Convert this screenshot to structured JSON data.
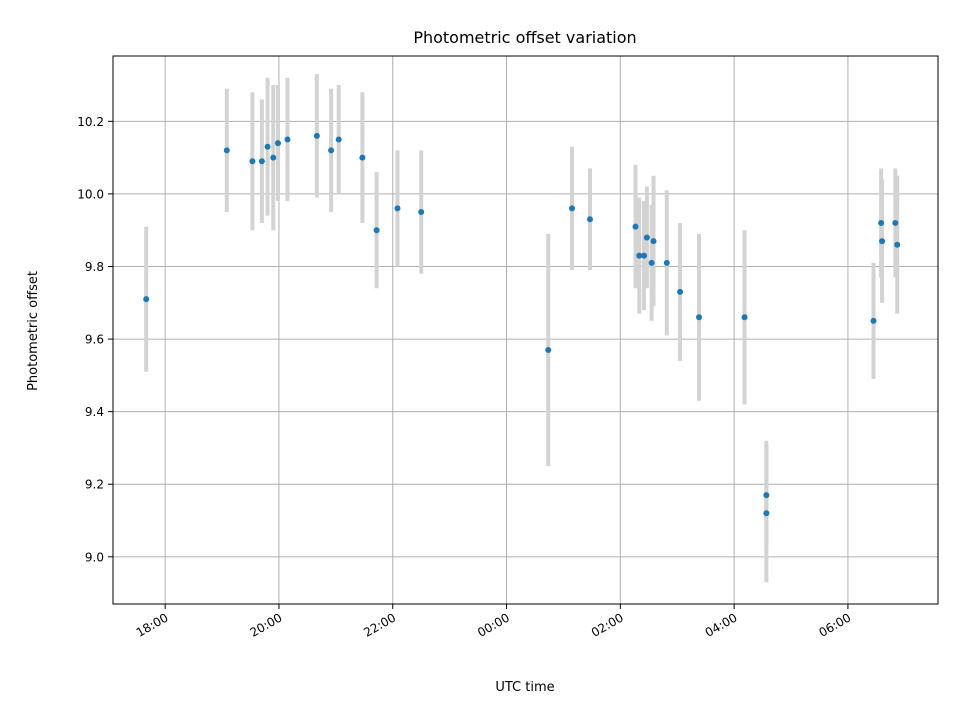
{
  "chart_data": {
    "type": "scatter",
    "title": "Photometric offset variation",
    "xlabel": "UTC time",
    "ylabel": "Photometric offset",
    "x_is_time": true,
    "x_range": [
      "17:05",
      "07:35"
    ],
    "xlim": [
      -415,
      455
    ],
    "ylim": [
      8.87,
      10.38
    ],
    "grid": true,
    "x_ticks": [
      {
        "minutes": -360,
        "label": "18:00"
      },
      {
        "minutes": -240,
        "label": "20:00"
      },
      {
        "minutes": -120,
        "label": "22:00"
      },
      {
        "minutes": 0,
        "label": "00:00"
      },
      {
        "minutes": 120,
        "label": "02:00"
      },
      {
        "minutes": 240,
        "label": "04:00"
      },
      {
        "minutes": 360,
        "label": "06:00"
      }
    ],
    "y_ticks": [
      {
        "value": 9.0,
        "label": "9.0"
      },
      {
        "value": 9.2,
        "label": "9.2"
      },
      {
        "value": 9.4,
        "label": "9.4"
      },
      {
        "value": 9.6,
        "label": "9.6"
      },
      {
        "value": 9.8,
        "label": "9.8"
      },
      {
        "value": 10.0,
        "label": "10.0"
      },
      {
        "value": 10.2,
        "label": "10.2"
      }
    ],
    "marker_color": "#1f77b4",
    "errorbar_color": "#d3d3d3",
    "points": [
      {
        "time": "17:40",
        "minutes": -380,
        "y": 9.71,
        "err": 0.2
      },
      {
        "time": "19:05",
        "minutes": -295,
        "y": 10.12,
        "err": 0.17
      },
      {
        "time": "19:32",
        "minutes": -268,
        "y": 10.09,
        "err": 0.19
      },
      {
        "time": "19:42",
        "minutes": -258,
        "y": 10.09,
        "err": 0.17
      },
      {
        "time": "19:48",
        "minutes": -252,
        "y": 10.13,
        "err": 0.19
      },
      {
        "time": "19:54",
        "minutes": -246,
        "y": 10.1,
        "err": 0.2
      },
      {
        "time": "19:59",
        "minutes": -241,
        "y": 10.14,
        "err": 0.16
      },
      {
        "time": "20:09",
        "minutes": -231,
        "y": 10.15,
        "err": 0.17
      },
      {
        "time": "20:40",
        "minutes": -200,
        "y": 10.16,
        "err": 0.17
      },
      {
        "time": "20:55",
        "minutes": -185,
        "y": 10.12,
        "err": 0.17
      },
      {
        "time": "21:03",
        "minutes": -177,
        "y": 10.15,
        "err": 0.15
      },
      {
        "time": "21:28",
        "minutes": -152,
        "y": 10.1,
        "err": 0.18
      },
      {
        "time": "21:43",
        "minutes": -137,
        "y": 9.9,
        "err": 0.16
      },
      {
        "time": "22:05",
        "minutes": -115,
        "y": 9.96,
        "err": 0.16
      },
      {
        "time": "22:30",
        "minutes": -90,
        "y": 9.95,
        "err": 0.17
      },
      {
        "time": "00:44",
        "minutes": 44,
        "y": 9.57,
        "err": 0.32
      },
      {
        "time": "01:09",
        "minutes": 69,
        "y": 9.96,
        "err": 0.17
      },
      {
        "time": "01:28",
        "minutes": 88,
        "y": 9.93,
        "err": 0.14
      },
      {
        "time": "02:16",
        "minutes": 136,
        "y": 9.91,
        "err": 0.17
      },
      {
        "time": "02:20",
        "minutes": 140,
        "y": 9.83,
        "err": 0.16
      },
      {
        "time": "02:25",
        "minutes": 145,
        "y": 9.83,
        "err": 0.15
      },
      {
        "time": "02:28",
        "minutes": 148,
        "y": 9.88,
        "err": 0.14
      },
      {
        "time": "02:33",
        "minutes": 153,
        "y": 9.81,
        "err": 0.16
      },
      {
        "time": "02:35",
        "minutes": 155,
        "y": 9.87,
        "err": 0.18
      },
      {
        "time": "02:49",
        "minutes": 169,
        "y": 9.81,
        "err": 0.2
      },
      {
        "time": "03:03",
        "minutes": 183,
        "y": 9.73,
        "err": 0.19
      },
      {
        "time": "03:23",
        "minutes": 203,
        "y": 9.66,
        "err": 0.23
      },
      {
        "time": "04:11",
        "minutes": 251,
        "y": 9.66,
        "err": 0.24
      },
      {
        "time": "04:34",
        "minutes": 274,
        "y": 9.17,
        "err": 0.15
      },
      {
        "time": "04:34",
        "minutes": 274,
        "y": 9.12,
        "err": 0.19
      },
      {
        "time": "06:27",
        "minutes": 387,
        "y": 9.65,
        "err": 0.16
      },
      {
        "time": "06:35",
        "minutes": 395,
        "y": 9.92,
        "err": 0.15
      },
      {
        "time": "06:36",
        "minutes": 396,
        "y": 9.87,
        "err": 0.17
      },
      {
        "time": "06:50",
        "minutes": 410,
        "y": 9.92,
        "err": 0.15
      },
      {
        "time": "06:52",
        "minutes": 412,
        "y": 9.86,
        "err": 0.19
      }
    ]
  }
}
